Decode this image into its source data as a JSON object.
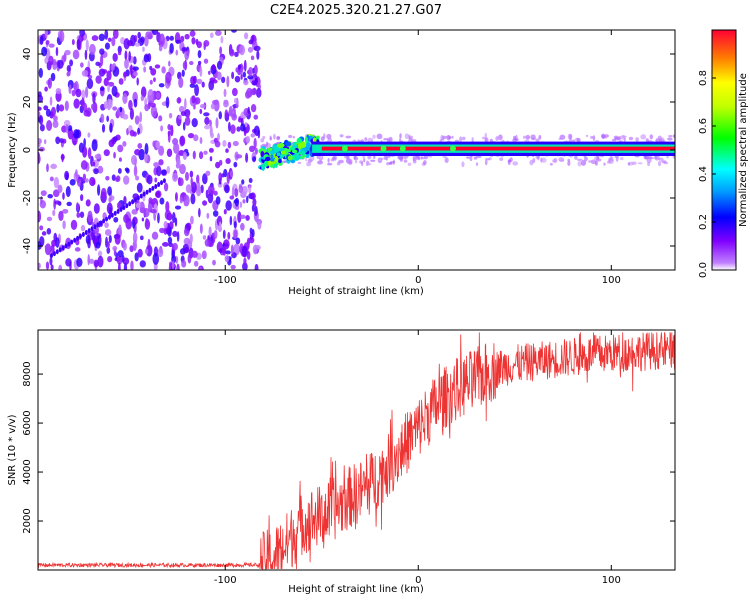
{
  "chart_data": [
    {
      "type": "heatmap",
      "title": "C2E4.2025.320.21.27.G07",
      "xlabel": "Height of straight line (km)",
      "ylabel": "Frequency (Hz)",
      "xlim": [
        -197,
        133
      ],
      "ylim": [
        -50,
        50
      ],
      "xticks": [
        -100,
        0,
        100
      ],
      "yticks": [
        -40,
        -20,
        0,
        20,
        40
      ],
      "colorbar": {
        "label": "Normalized spectral amplitude",
        "range": [
          0,
          1
        ],
        "ticks": [
          0.0,
          0.2,
          0.4,
          0.6,
          0.8
        ],
        "colormap": "rainbow (purple-blue-cyan-green-yellow-red)"
      },
      "regions": [
        {
          "name": "noise",
          "x": [
            -197,
            -82
          ],
          "amplitude": "low (0.05-0.2)",
          "frequency": "broadband"
        },
        {
          "name": "signal-onset",
          "x": [
            -82,
            -55
          ],
          "frequency_center": [
            -3,
            3
          ],
          "amplitude": "0.3-0.6"
        },
        {
          "name": "carrier",
          "x": [
            -55,
            133
          ],
          "frequency_center": 0.5,
          "amplitude": "~1.0"
        }
      ],
      "colors": {
        "low": "#a020f0",
        "mid": "#00ffff",
        "high": "#ff0000"
      }
    },
    {
      "type": "line",
      "xlabel": "Height of straight line (km)",
      "ylabel": "SNR (10 * v/v)",
      "xlim": [
        -197,
        133
      ],
      "ylim": [
        0,
        9800
      ],
      "xticks": [
        -100,
        0,
        100
      ],
      "yticks": [
        2000,
        4000,
        6000,
        8000
      ],
      "series": [
        {
          "name": "SNR",
          "color": "#ee3333",
          "x": [
            -197,
            -150,
            -100,
            -82,
            -75,
            -70,
            -65,
            -60,
            -55,
            -50,
            -45,
            -40,
            -35,
            -30,
            -25,
            -20,
            -15,
            -10,
            -5,
            0,
            5,
            10,
            15,
            20,
            25,
            30,
            35,
            40,
            50,
            60,
            70,
            80,
            90,
            100,
            110,
            120,
            133
          ],
          "y": [
            200,
            200,
            200,
            210,
            500,
            900,
            1400,
            1900,
            2100,
            2200,
            2400,
            2700,
            3000,
            3200,
            3500,
            3900,
            4300,
            4800,
            5300,
            5800,
            6300,
            6800,
            7100,
            7400,
            7600,
            7800,
            8000,
            8200,
            8400,
            8500,
            8600,
            8700,
            8800,
            8850,
            8900,
            8950,
            9000
          ]
        }
      ]
    }
  ]
}
